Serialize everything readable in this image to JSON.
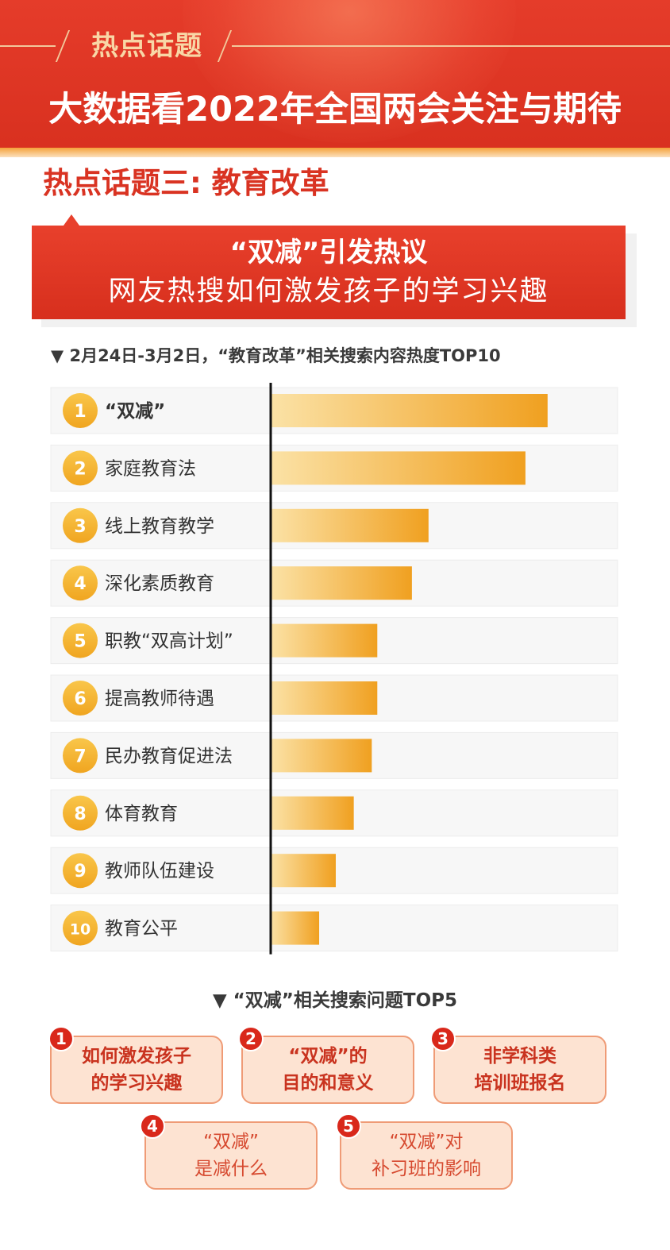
{
  "header": {
    "kicker": "热点话题",
    "title": "大数据看2022年全国两会关注与期待"
  },
  "section": {
    "heading": "热点话题三: 教育改革"
  },
  "callout": {
    "line1": "“双减”引发热议",
    "line2": "网友热搜如何激发孩子的学习兴趣"
  },
  "chart_caption": "▼ 2月24日-3月2日，“教育改革”相关搜索内容热度TOP10",
  "colors": {
    "red": "#d93322",
    "bar_light": "#fbe2a6",
    "bar_dark": "#f0a020",
    "badge": "#f4b328"
  },
  "chart_data": {
    "type": "bar",
    "orientation": "horizontal",
    "categories": [
      "“双减”",
      "家庭教育法",
      "线上教育教学",
      "深化素质教育",
      "职教“双高计划”",
      "提高教师待遇",
      "民办教育促进法",
      "体育教育",
      "教师队伍建设",
      "教育公平"
    ],
    "ranks": [
      "1",
      "2",
      "3",
      "4",
      "5",
      "6",
      "7",
      "8",
      "9",
      "10"
    ],
    "values": [
      100,
      92,
      57,
      51,
      38.5,
      38.5,
      36.5,
      30,
      23.5,
      17.5
    ],
    "xlim": [
      0,
      125
    ],
    "title": "",
    "xlabel": "",
    "ylabel": ""
  },
  "questions": {
    "caption": "▼ “双减”相关搜索问题TOP5",
    "items": [
      {
        "num": "1",
        "text": "如何激发孩子\n的学习兴趣"
      },
      {
        "num": "2",
        "text": "“双减”的\n目的和意义"
      },
      {
        "num": "3",
        "text": "非学科类\n培训班报名"
      },
      {
        "num": "4",
        "text": "“双减”\n是减什么"
      },
      {
        "num": "5",
        "text": "“双减”对\n补习班的影响"
      }
    ]
  }
}
